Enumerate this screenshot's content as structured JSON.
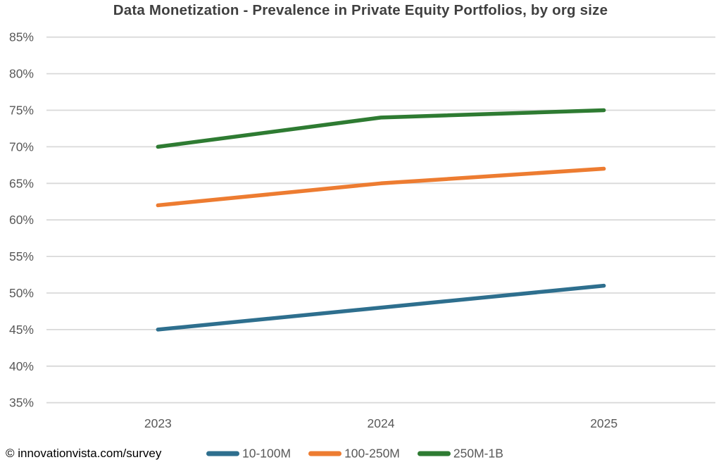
{
  "page": {
    "footer_source": "© innovationvista.com/survey"
  },
  "chart_data": {
    "type": "line",
    "title": "Data Monetization - Prevalence in Private Equity Portfolios, by org size",
    "categories": [
      "2023",
      "2024",
      "2025"
    ],
    "series": [
      {
        "name": "10-100M",
        "color": "#2E6F8E",
        "values": [
          45,
          48,
          51
        ]
      },
      {
        "name": "100-250M",
        "color": "#ED7C31",
        "values": [
          62,
          65,
          67
        ]
      },
      {
        "name": "250M-1B",
        "color": "#2E7B32",
        "values": [
          70,
          74,
          75
        ]
      }
    ],
    "ylim": [
      35,
      85
    ],
    "ytick_step": 5,
    "ytick_suffix": "%",
    "xlabel": "",
    "ylabel": "",
    "grid": "horizontal",
    "legend_position": "bottom",
    "colors": {
      "title_text": "#3F3F3F",
      "axis_text": "#595959",
      "gridline": "#D9D9D9",
      "footer_text": "#000000",
      "background": "#FFFFFF"
    }
  }
}
